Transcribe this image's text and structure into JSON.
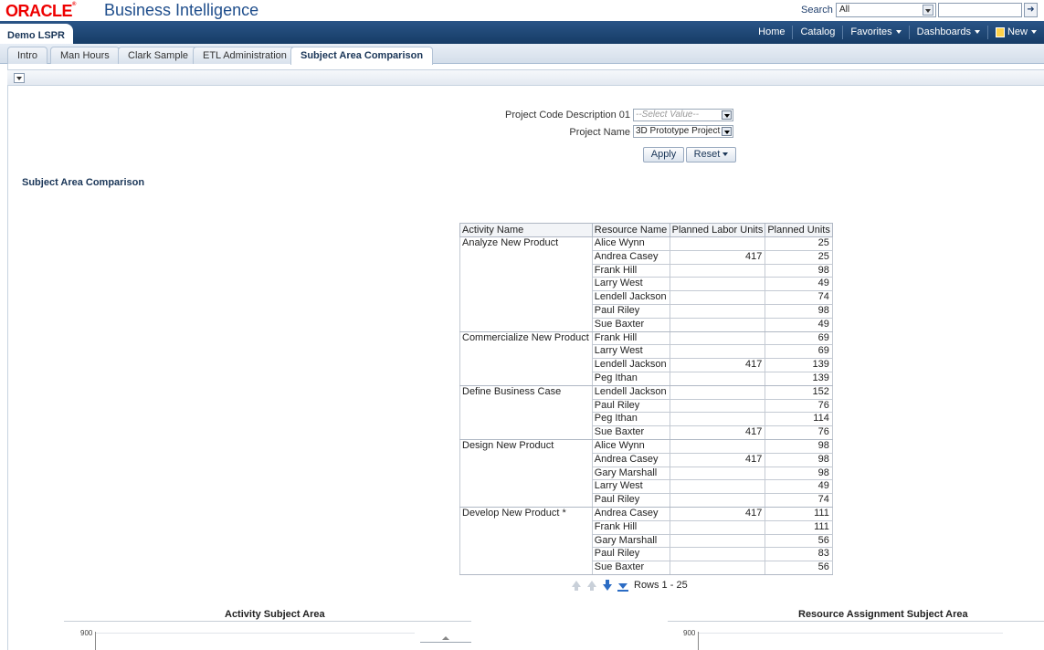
{
  "brand": {
    "logo": "ORACLE",
    "product": "Business Intelligence"
  },
  "search": {
    "label": "Search",
    "scope": "All",
    "query": "",
    "go_icon": "arrow-right-icon"
  },
  "dashboard": {
    "name": "Demo LSPR"
  },
  "nav": {
    "home": "Home",
    "catalog": "Catalog",
    "favorites": "Favorites",
    "dashboards": "Dashboards",
    "new": "New"
  },
  "tabs": [
    {
      "label": "Intro"
    },
    {
      "label": "Man Hours"
    },
    {
      "label": "Clark Sample"
    },
    {
      "label": "ETL Administration"
    },
    {
      "label": "Subject Area Comparison",
      "active": true
    }
  ],
  "prompts": {
    "project_code_label": "Project Code Description 01",
    "project_code_placeholder": "--Select Value--",
    "project_name_label": "Project Name",
    "project_name_value": "3D Prototype Project",
    "apply": "Apply",
    "reset": "Reset"
  },
  "section_title": "Subject Area Comparison",
  "table": {
    "headers": [
      "Activity Name",
      "Resource Name",
      "Planned Labor Units",
      "Planned Units"
    ],
    "groups": [
      {
        "activity": "Analyze New Product",
        "rows": [
          [
            "Alice Wynn",
            "",
            "25"
          ],
          [
            "Andrea Casey",
            "417",
            "25"
          ],
          [
            "Frank Hill",
            "",
            "98"
          ],
          [
            "Larry West",
            "",
            "49"
          ],
          [
            "Lendell Jackson",
            "",
            "74"
          ],
          [
            "Paul Riley",
            "",
            "98"
          ],
          [
            "Sue Baxter",
            "",
            "49"
          ]
        ]
      },
      {
        "activity": "Commercialize New Product",
        "rows": [
          [
            "Frank Hill",
            "",
            "69"
          ],
          [
            "Larry West",
            "",
            "69"
          ],
          [
            "Lendell Jackson",
            "417",
            "139"
          ],
          [
            "Peg Ithan",
            "",
            "139"
          ]
        ]
      },
      {
        "activity": "Define Business Case",
        "rows": [
          [
            "Lendell Jackson",
            "",
            "152"
          ],
          [
            "Paul Riley",
            "",
            "76"
          ],
          [
            "Peg Ithan",
            "",
            "114"
          ],
          [
            "Sue Baxter",
            "417",
            "76"
          ]
        ]
      },
      {
        "activity": "Design New Product",
        "rows": [
          [
            "Alice Wynn",
            "",
            "98"
          ],
          [
            "Andrea Casey",
            "417",
            "98"
          ],
          [
            "Gary Marshall",
            "",
            "98"
          ],
          [
            "Larry West",
            "",
            "49"
          ],
          [
            "Paul Riley",
            "",
            "74"
          ]
        ]
      },
      {
        "activity": "Develop New Product *",
        "rows": [
          [
            "Andrea Casey",
            "417",
            "111"
          ],
          [
            "Frank Hill",
            "",
            "111"
          ],
          [
            "Gary Marshall",
            "",
            "56"
          ],
          [
            "Paul Riley",
            "",
            "83"
          ],
          [
            "Sue Baxter",
            "",
            "56"
          ]
        ]
      }
    ]
  },
  "pager": {
    "rows_label": "Rows 1 - 25"
  },
  "charts": {
    "left_title": "Activity Subject Area",
    "right_title": "Resource Assignment Subject Area",
    "left_top_tick": "900",
    "right_top_tick": "900"
  }
}
